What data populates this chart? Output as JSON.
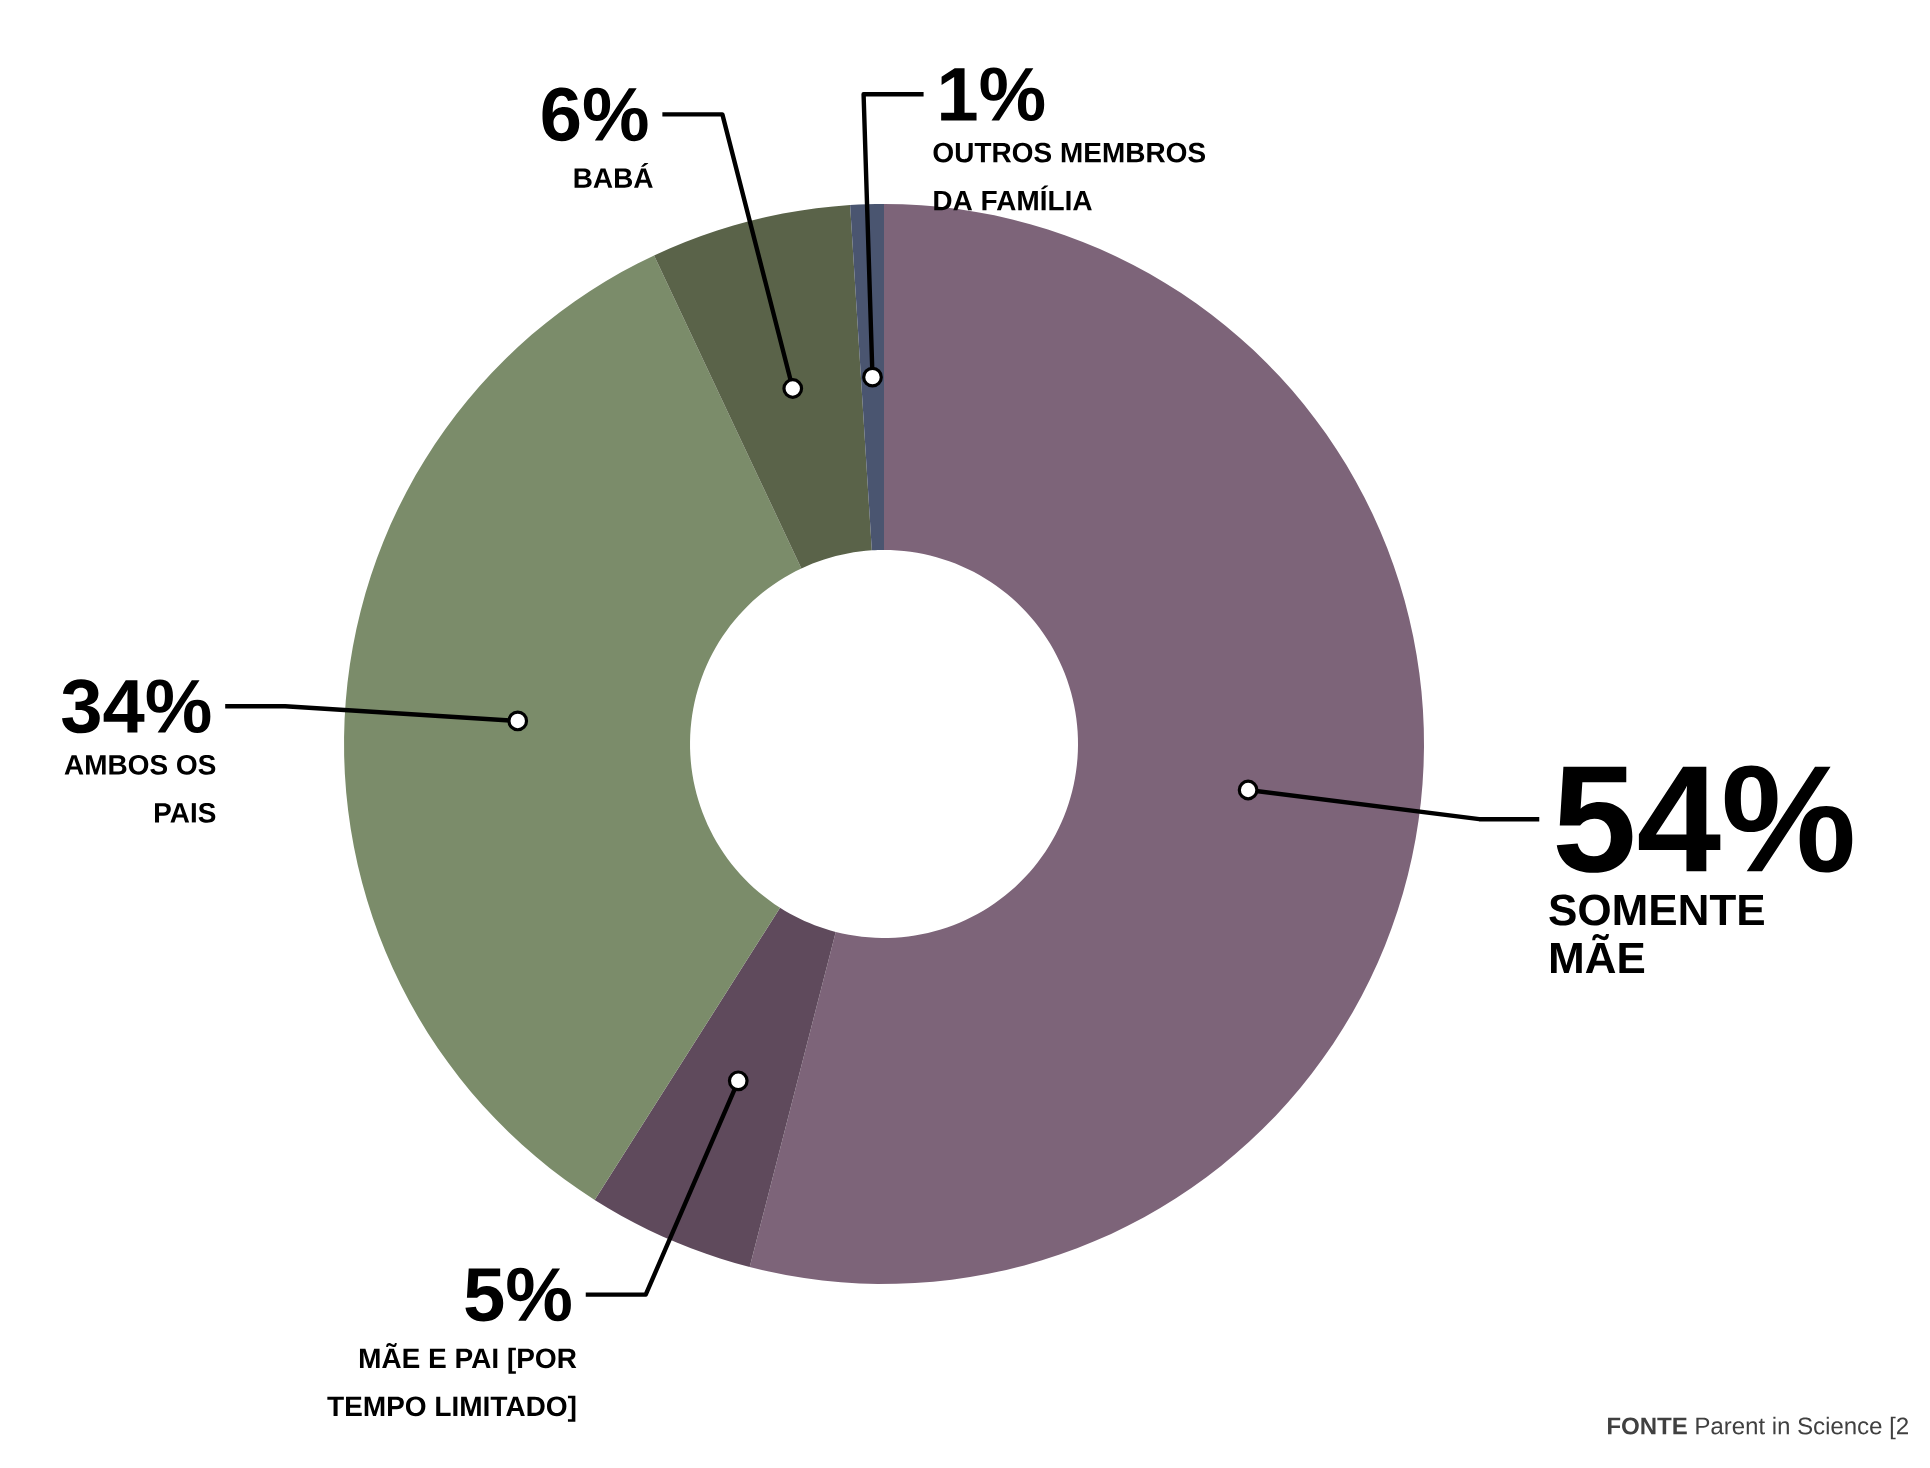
{
  "chart_data": {
    "type": "donut",
    "categories": [
      "SOMENTE MÃE",
      "MÃE E PAI [POR TEMPO LIMITADO]",
      "AMBOS OS PAIS",
      "BABÁ",
      "OUTROS MEMBROS DA FAMÍLIA"
    ],
    "values": [
      54,
      5,
      34,
      6,
      1
    ],
    "value_labels": [
      "54%",
      "5%",
      "34%",
      "6%",
      "1%"
    ],
    "colors": [
      "#7d6479",
      "#5f4a5c",
      "#7b8c6a",
      "#5a6349",
      "#4a5570"
    ],
    "annotations": [
      "**FONTE** Parent in Science [2"
    ]
  }
}
